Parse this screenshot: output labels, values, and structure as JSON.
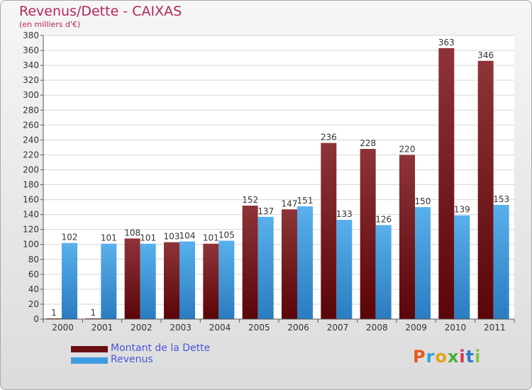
{
  "header": {
    "title": "Revenus/Dette - CAIXAS",
    "subtitle": "(en milliers d'€)"
  },
  "logo": {
    "text": "Proxiti",
    "colors": [
      "#e85b1c",
      "#2fa5d8",
      "#e8a21c",
      "#4cae3c",
      "#d8324a",
      "#2a7ad8",
      "#8bc34a"
    ]
  },
  "colors": {
    "dette": "#7a1f24",
    "revenus": "#3d9be0",
    "title": "#b3265a",
    "legend_text": "#4a56d8"
  },
  "chart_data": {
    "type": "bar",
    "title": "Revenus/Dette - CAIXAS",
    "subtitle": "(en milliers d'€)",
    "categories": [
      "2000",
      "2001",
      "2002",
      "2003",
      "2004",
      "2005",
      "2006",
      "2007",
      "2008",
      "2009",
      "2010",
      "2011"
    ],
    "series": [
      {
        "name": "Montant de la Dette",
        "values": [
          1,
          1,
          108,
          103,
          101,
          152,
          147,
          236,
          228,
          220,
          363,
          346
        ]
      },
      {
        "name": "Revenus",
        "values": [
          102,
          101,
          101,
          104,
          105,
          137,
          151,
          133,
          126,
          150,
          139,
          153
        ]
      }
    ],
    "ylim": [
      0,
      380
    ],
    "yticks": [
      0,
      20,
      40,
      60,
      80,
      100,
      120,
      140,
      160,
      180,
      200,
      220,
      240,
      260,
      280,
      300,
      320,
      340,
      360,
      380
    ],
    "grid": true,
    "legend_position": "bottom-left",
    "xlabel": "",
    "ylabel": ""
  }
}
